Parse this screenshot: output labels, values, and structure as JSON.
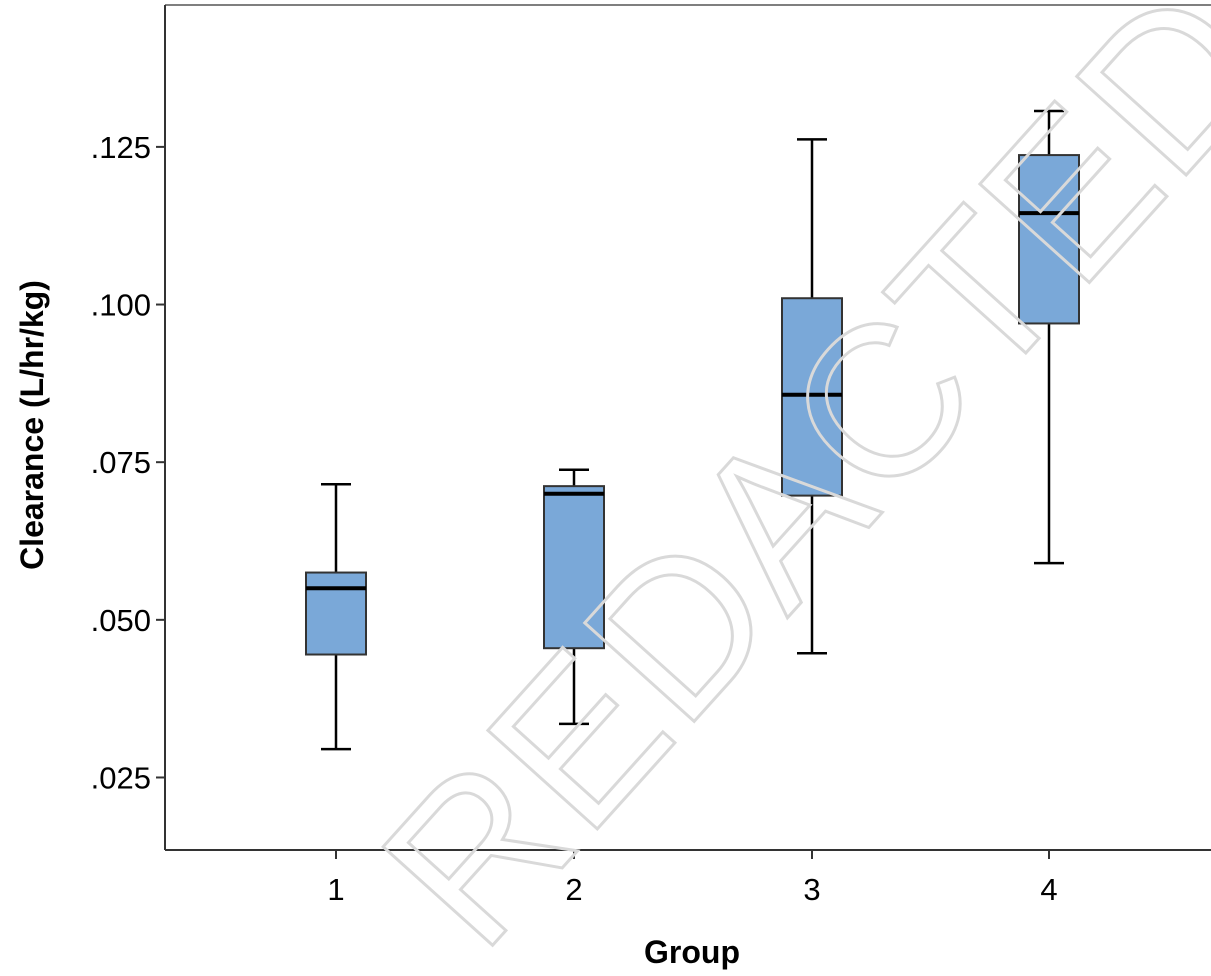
{
  "chart_data": {
    "type": "box",
    "xlabel": "Group",
    "ylabel": "Clearance (L/hr/kg)",
    "categories": [
      "1",
      "2",
      "3",
      "4"
    ],
    "ylim": [
      0.0135,
      0.1475
    ],
    "yticks": [
      0.025,
      0.05,
      0.075,
      0.1,
      0.125
    ],
    "ytick_labels": [
      ".025",
      ".050",
      ".075",
      ".100",
      ".125"
    ],
    "grid": false,
    "legend": "none",
    "boxes": [
      {
        "group": "1",
        "min": 0.0295,
        "q1": 0.0445,
        "median": 0.055,
        "q3": 0.0575,
        "max": 0.0715
      },
      {
        "group": "2",
        "min": 0.0335,
        "q1": 0.0455,
        "median": 0.07,
        "q3": 0.0712,
        "max": 0.0738
      },
      {
        "group": "3",
        "min": 0.0447,
        "q1": 0.0697,
        "median": 0.0857,
        "q3": 0.101,
        "max": 0.1262
      },
      {
        "group": "4",
        "min": 0.059,
        "q1": 0.097,
        "median": 0.1145,
        "q3": 0.1237,
        "max": 0.1307
      }
    ],
    "colors": {
      "box_fill": "#7aa8d8",
      "box_stroke": "#333333",
      "line": "#000000",
      "frame": "#7f7f7f"
    }
  },
  "watermark": {
    "text": "REDACTED",
    "color": "#d9d9d9"
  }
}
